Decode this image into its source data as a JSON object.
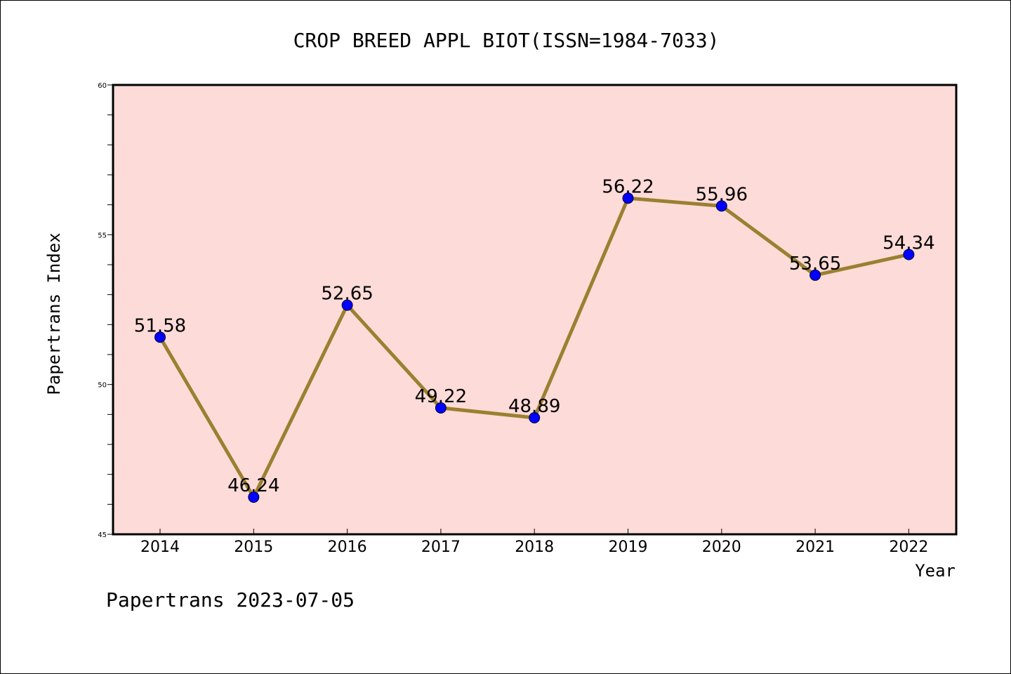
{
  "chart_data": {
    "type": "line",
    "title": "CROP BREED APPL BIOT(ISSN=1984-7033)",
    "xlabel": "Year",
    "ylabel": "Papertrans Index",
    "footer": "Papertrans 2023-07-05",
    "categories": [
      "2014",
      "2015",
      "2016",
      "2017",
      "2018",
      "2019",
      "2020",
      "2021",
      "2022"
    ],
    "values": [
      51.58,
      46.24,
      52.65,
      49.22,
      48.89,
      56.22,
      55.96,
      53.65,
      54.34
    ],
    "data_labels": [
      "51.58",
      "46.24",
      "52.65",
      "49.22",
      "48.89",
      "56.22",
      "55.96",
      "53.65",
      "54.34"
    ],
    "ylim": [
      45,
      60
    ],
    "yticks": [
      45,
      50,
      55,
      60
    ],
    "ytick_labels": [
      "45",
      "50",
      "55",
      "60"
    ],
    "y_minor_step": 1,
    "grid": false,
    "colors": {
      "plot_background": "#fddbd8",
      "line": "#9a8030",
      "marker": "#0000ff",
      "frame": "#000000"
    }
  }
}
